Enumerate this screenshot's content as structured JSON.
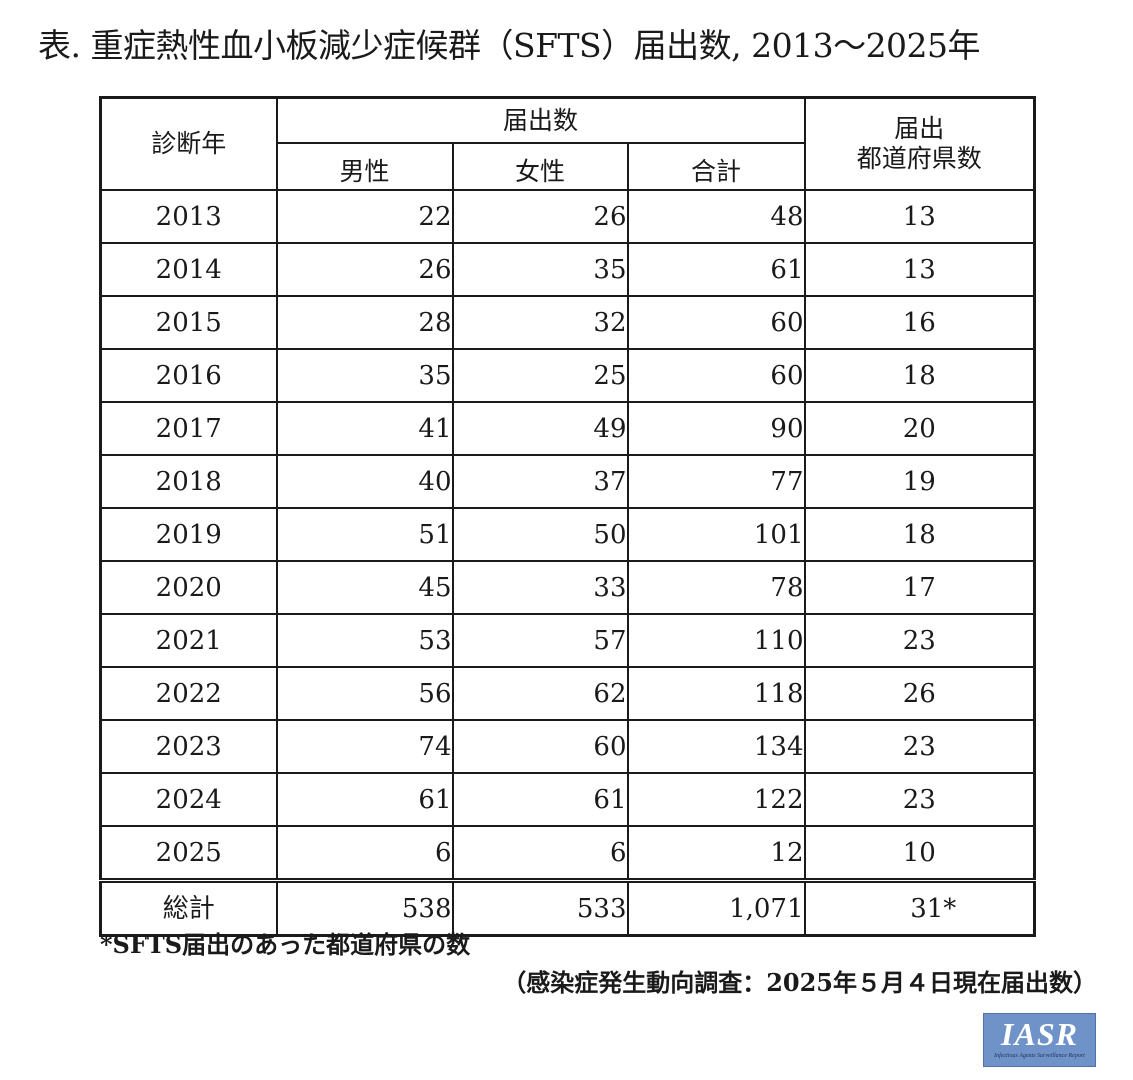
{
  "title": "表. 重症熱性血小板減少症候群（SFTS）届出数, 2013～2025年",
  "headers": {
    "year": "診断年",
    "reports": "届出数",
    "male": "男性",
    "female": "女性",
    "total": "合計",
    "prefectures_line1": "届出",
    "prefectures_line2": "都道府県数"
  },
  "rows": [
    {
      "year": "2013",
      "male": "22",
      "female": "26",
      "total": "48",
      "prefectures": "13"
    },
    {
      "year": "2014",
      "male": "26",
      "female": "35",
      "total": "61",
      "prefectures": "13"
    },
    {
      "year": "2015",
      "male": "28",
      "female": "32",
      "total": "60",
      "prefectures": "16"
    },
    {
      "year": "2016",
      "male": "35",
      "female": "25",
      "total": "60",
      "prefectures": "18"
    },
    {
      "year": "2017",
      "male": "41",
      "female": "49",
      "total": "90",
      "prefectures": "20"
    },
    {
      "year": "2018",
      "male": "40",
      "female": "37",
      "total": "77",
      "prefectures": "19"
    },
    {
      "year": "2019",
      "male": "51",
      "female": "50",
      "total": "101",
      "prefectures": "18"
    },
    {
      "year": "2020",
      "male": "45",
      "female": "33",
      "total": "78",
      "prefectures": "17"
    },
    {
      "year": "2021",
      "male": "53",
      "female": "57",
      "total": "110",
      "prefectures": "23"
    },
    {
      "year": "2022",
      "male": "56",
      "female": "62",
      "total": "118",
      "prefectures": "26"
    },
    {
      "year": "2023",
      "male": "74",
      "female": "60",
      "total": "134",
      "prefectures": "23"
    },
    {
      "year": "2024",
      "male": "61",
      "female": "61",
      "total": "122",
      "prefectures": "23"
    },
    {
      "year": "2025",
      "male": "6",
      "female": "6",
      "total": "12",
      "prefectures": "10"
    }
  ],
  "total_row": {
    "label": "総計",
    "male": "538",
    "female": "533",
    "total": "1,071",
    "prefectures": "31*"
  },
  "footnote": "*SFTS届出のあった都道府県の数",
  "source": "（感染症発生動向調査：2025年５月４日現在届出数）",
  "logo": {
    "text": "IASR",
    "subtitle": "Infectious Agents Surveillance Report",
    "background_color": "#6f93c9"
  }
}
